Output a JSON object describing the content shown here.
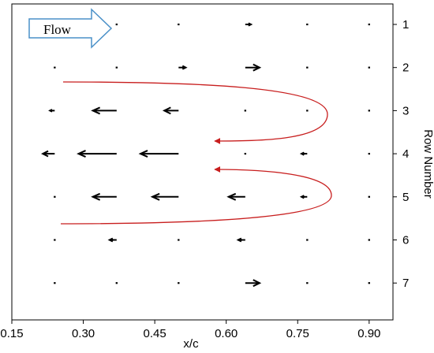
{
  "chart_data": {
    "type": "scatter",
    "subtype": "vector-field",
    "title": "",
    "xlabel": "x/c",
    "ylabel": "Row Number",
    "x_ticks": [
      "0.15",
      "0.30",
      "0.45",
      "0.60",
      "0.75",
      "0.90"
    ],
    "y_ticks": [
      "1",
      "2",
      "3",
      "4",
      "5",
      "6",
      "7"
    ],
    "xlim": [
      0.15,
      0.95
    ],
    "ylim": [
      0.6,
      7.8
    ],
    "y_axis_side": "right",
    "y_inverted": true,
    "grid": false,
    "vector_color": "#000000",
    "annotation_color": "#c81e1e",
    "flow_arrow_color": "#4a90c8",
    "flow_label": "Flow",
    "vectors": [
      {
        "row": 1,
        "x": 0.37,
        "u": 0.0
      },
      {
        "row": 1,
        "x": 0.5,
        "u": 0.0
      },
      {
        "row": 1,
        "x": 0.64,
        "u": 0.012
      },
      {
        "row": 1,
        "x": 0.77,
        "u": 0.0
      },
      {
        "row": 1,
        "x": 0.9,
        "u": 0.0
      },
      {
        "row": 2,
        "x": 0.24,
        "u": 0.0
      },
      {
        "row": 2,
        "x": 0.37,
        "u": 0.0
      },
      {
        "row": 2,
        "x": 0.5,
        "u": 0.015
      },
      {
        "row": 2,
        "x": 0.64,
        "u": 0.03
      },
      {
        "row": 2,
        "x": 0.77,
        "u": 0.0
      },
      {
        "row": 2,
        "x": 0.9,
        "u": 0.0
      },
      {
        "row": 3,
        "x": 0.24,
        "u": -0.01
      },
      {
        "row": 3,
        "x": 0.37,
        "u": -0.05
      },
      {
        "row": 3,
        "x": 0.5,
        "u": -0.03
      },
      {
        "row": 3,
        "x": 0.64,
        "u": 0.0
      },
      {
        "row": 3,
        "x": 0.77,
        "u": 0.0
      },
      {
        "row": 3,
        "x": 0.9,
        "u": 0.0
      },
      {
        "row": 4,
        "x": 0.24,
        "u": -0.025
      },
      {
        "row": 4,
        "x": 0.37,
        "u": -0.08
      },
      {
        "row": 4,
        "x": 0.5,
        "u": -0.08
      },
      {
        "row": 4,
        "x": 0.64,
        "u": 0.0
      },
      {
        "row": 4,
        "x": 0.77,
        "u": -0.012
      },
      {
        "row": 4,
        "x": 0.9,
        "u": 0.0
      },
      {
        "row": 5,
        "x": 0.24,
        "u": 0.0
      },
      {
        "row": 5,
        "x": 0.37,
        "u": -0.05
      },
      {
        "row": 5,
        "x": 0.5,
        "u": -0.055
      },
      {
        "row": 5,
        "x": 0.64,
        "u": -0.035
      },
      {
        "row": 5,
        "x": 0.77,
        "u": -0.012
      },
      {
        "row": 5,
        "x": 0.9,
        "u": 0.0
      },
      {
        "row": 6,
        "x": 0.24,
        "u": 0.0
      },
      {
        "row": 6,
        "x": 0.37,
        "u": -0.015
      },
      {
        "row": 6,
        "x": 0.5,
        "u": 0.0
      },
      {
        "row": 6,
        "x": 0.64,
        "u": -0.015
      },
      {
        "row": 6,
        "x": 0.77,
        "u": 0.0
      },
      {
        "row": 6,
        "x": 0.9,
        "u": 0.0
      },
      {
        "row": 7,
        "x": 0.24,
        "u": 0.0
      },
      {
        "row": 7,
        "x": 0.37,
        "u": 0.0
      },
      {
        "row": 7,
        "x": 0.5,
        "u": 0.0
      },
      {
        "row": 7,
        "x": 0.64,
        "u": 0.03
      },
      {
        "row": 7,
        "x": 0.77,
        "u": 0.0
      },
      {
        "row": 7,
        "x": 0.9,
        "u": 0.0
      }
    ]
  }
}
